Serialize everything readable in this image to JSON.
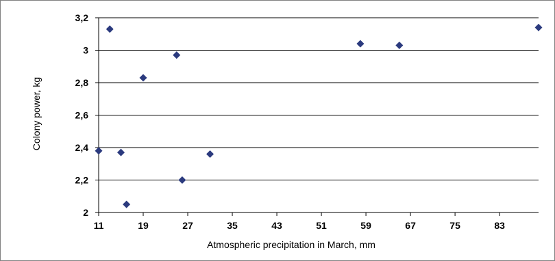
{
  "chart_data": {
    "type": "scatter",
    "title": "",
    "xlabel": "Atmospheric precipitation in March, mm",
    "ylabel": "Colony power, kg",
    "xlim": [
      11,
      90
    ],
    "ylim": [
      2,
      3.2
    ],
    "x_ticks": [
      "11",
      "19",
      "27",
      "35",
      "43",
      "51",
      "59",
      "67",
      "75",
      "83"
    ],
    "x_tick_values": [
      11,
      19,
      27,
      35,
      43,
      51,
      59,
      67,
      75,
      83
    ],
    "y_ticks": [
      "2",
      "2,2",
      "2,4",
      "2,6",
      "2,8",
      "3",
      "3,2"
    ],
    "y_tick_values": [
      2,
      2.2,
      2.4,
      2.6,
      2.8,
      3.0,
      3.2
    ],
    "grid": "horizontal",
    "marker": "diamond",
    "marker_color": "#2B3A7E",
    "points": [
      {
        "x": 11,
        "y": 2.38
      },
      {
        "x": 13,
        "y": 3.13
      },
      {
        "x": 15,
        "y": 2.37
      },
      {
        "x": 16,
        "y": 2.05
      },
      {
        "x": 19,
        "y": 2.83
      },
      {
        "x": 25,
        "y": 2.97
      },
      {
        "x": 26,
        "y": 2.2
      },
      {
        "x": 31,
        "y": 2.36
      },
      {
        "x": 58,
        "y": 3.04
      },
      {
        "x": 65,
        "y": 3.03
      },
      {
        "x": 90,
        "y": 3.14
      }
    ]
  }
}
